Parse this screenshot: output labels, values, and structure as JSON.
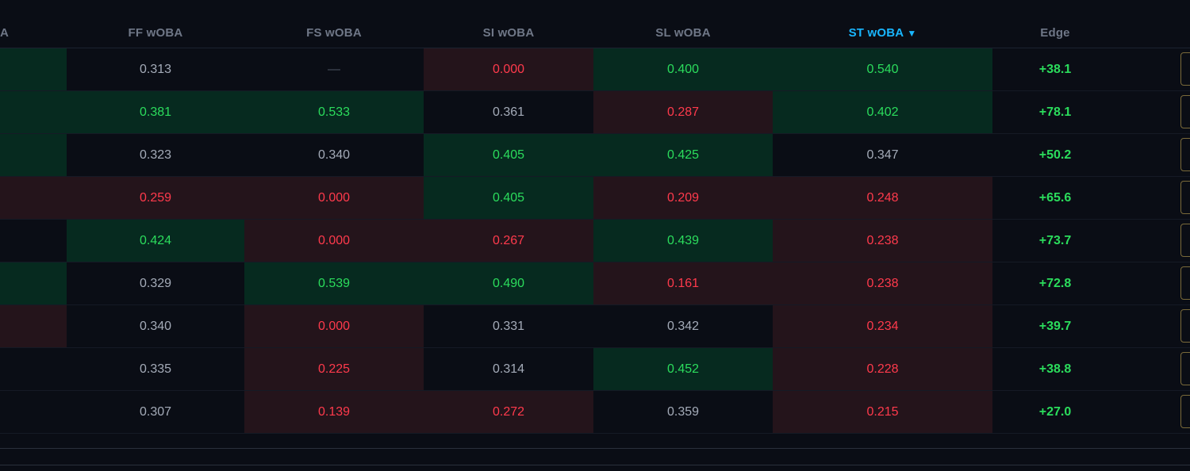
{
  "headers": {
    "partial": "A",
    "ff": "FF wOBA",
    "fs": "FS wOBA",
    "si": "SI wOBA",
    "sl": "SL wOBA",
    "st": "ST wOBA",
    "st_sort_glyph": "▼",
    "edge": "Edge"
  },
  "rows": [
    {
      "prev": "",
      "ff": "0.313",
      "fs": "—",
      "si": "0.000",
      "sl": "0.400",
      "st": "0.540",
      "edge": "+38.1"
    },
    {
      "prev": "",
      "ff": "0.381",
      "fs": "0.533",
      "si": "0.361",
      "sl": "0.287",
      "st": "0.402",
      "edge": "+78.1"
    },
    {
      "prev": "",
      "ff": "0.323",
      "fs": "0.340",
      "si": "0.405",
      "sl": "0.425",
      "st": "0.347",
      "edge": "+50.2"
    },
    {
      "prev": "",
      "ff": "0.259",
      "fs": "0.000",
      "si": "0.405",
      "sl": "0.209",
      "st": "0.248",
      "edge": "+65.6"
    },
    {
      "prev": "",
      "ff": "0.424",
      "fs": "0.000",
      "si": "0.267",
      "sl": "0.439",
      "st": "0.238",
      "edge": "+73.7"
    },
    {
      "prev": "",
      "ff": "0.329",
      "fs": "0.539",
      "si": "0.490",
      "sl": "0.161",
      "st": "0.238",
      "edge": "+72.8"
    },
    {
      "prev": "",
      "ff": "0.340",
      "fs": "0.000",
      "si": "0.331",
      "sl": "0.342",
      "st": "0.234",
      "edge": "+39.7"
    },
    {
      "prev": "",
      "ff": "0.335",
      "fs": "0.225",
      "si": "0.314",
      "sl": "0.452",
      "st": "0.228",
      "edge": "+38.8"
    },
    {
      "prev": "",
      "ff": "0.307",
      "fs": "0.139",
      "si": "0.272",
      "sl": "0.359",
      "st": "0.215",
      "edge": "+27.0"
    }
  ],
  "cell_states": [
    {
      "prev": "good",
      "ff": "neutral",
      "fs": "empty",
      "si": "bad",
      "sl": "good",
      "st": "good"
    },
    {
      "prev": "good",
      "ff": "good",
      "fs": "good",
      "si": "neutral",
      "sl": "bad",
      "st": "good"
    },
    {
      "prev": "good",
      "ff": "neutral",
      "fs": "neutral",
      "si": "good",
      "sl": "good",
      "st": "neutral"
    },
    {
      "prev": "bad",
      "ff": "bad",
      "fs": "bad",
      "si": "good",
      "sl": "bad",
      "st": "bad"
    },
    {
      "prev": "neutral",
      "ff": "good",
      "fs": "bad",
      "si": "bad",
      "sl": "good",
      "st": "bad"
    },
    {
      "prev": "good",
      "ff": "neutral",
      "fs": "good",
      "si": "good",
      "sl": "bad",
      "st": "bad"
    },
    {
      "prev": "bad",
      "ff": "neutral",
      "fs": "bad",
      "si": "neutral",
      "sl": "neutral",
      "st": "bad"
    },
    {
      "prev": "neutral",
      "ff": "neutral",
      "fs": "bad",
      "si": "neutral",
      "sl": "good",
      "st": "bad"
    },
    {
      "prev": "neutral",
      "ff": "neutral",
      "fs": "bad",
      "si": "bad",
      "sl": "neutral",
      "st": "bad"
    }
  ],
  "colors": {
    "background": "#0a0d15",
    "good_bg": "#062a1f",
    "good_text": "#2bdc5c",
    "bad_bg": "#24141b",
    "bad_text": "#ff3a4c",
    "neutral_text": "#a4abb8",
    "active_header": "#19b6ff"
  }
}
